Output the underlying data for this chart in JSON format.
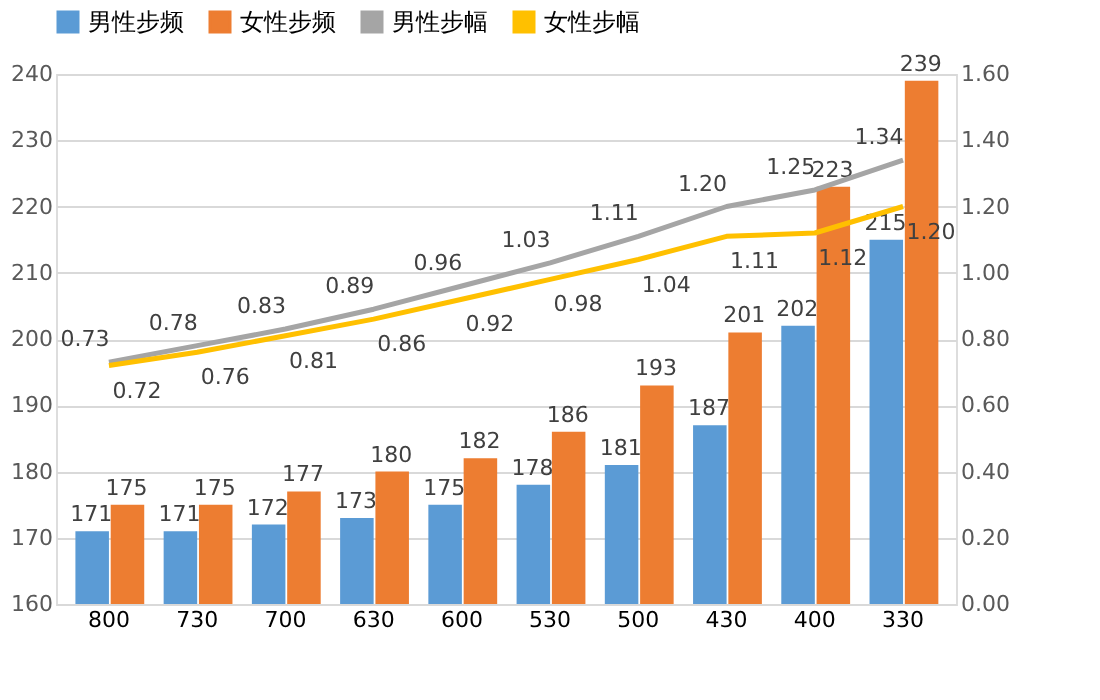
{
  "chart_data": {
    "type": "bar",
    "categories": [
      "800",
      "730",
      "700",
      "630",
      "600",
      "530",
      "500",
      "430",
      "400",
      "330"
    ],
    "series": [
      {
        "name": "男性步频",
        "color": "#5b9bd5",
        "values": [
          171,
          171,
          172,
          173,
          175,
          178,
          181,
          187,
          202,
          215
        ]
      },
      {
        "name": "女性步频",
        "color": "#ed7d31",
        "values": [
          175,
          175,
          177,
          180,
          182,
          186,
          193,
          201,
          223,
          239
        ]
      },
      {
        "name": "男性步幅",
        "type": "line",
        "axis": "y2",
        "color": "#a5a5a5",
        "values": [
          0.73,
          0.78,
          0.83,
          0.89,
          0.96,
          1.03,
          1.11,
          1.2,
          1.25,
          1.34
        ],
        "value_labels": [
          "0.73",
          "0.78",
          "0.83",
          "0.89",
          "0.96",
          "1.03",
          "1.11",
          "1.20",
          "1.25",
          "1.34"
        ]
      },
      {
        "name": "女性步幅",
        "type": "line",
        "axis": "y2",
        "color": "#ffc000",
        "values": [
          0.72,
          0.76,
          0.81,
          0.86,
          0.92,
          0.98,
          1.04,
          1.11,
          1.12,
          1.2
        ],
        "value_labels": [
          "0.72",
          "0.76",
          "0.81",
          "0.86",
          "0.92",
          "0.98",
          "1.04",
          "1.11",
          "1.12",
          "1.20"
        ]
      }
    ],
    "ylim": [
      160,
      240
    ],
    "yticks": [
      160,
      170,
      180,
      190,
      200,
      210,
      220,
      230,
      240
    ],
    "y2lim": [
      0,
      1.6
    ],
    "y2ticks": [
      {
        "value": 0,
        "label": "0.00"
      },
      {
        "value": 0.2,
        "label": "0.20"
      },
      {
        "value": 0.4,
        "label": "0.40"
      },
      {
        "value": 0.6,
        "label": "0.60"
      },
      {
        "value": 0.8,
        "label": "0.80"
      },
      {
        "value": 1.0,
        "label": "1.00"
      },
      {
        "value": 1.2,
        "label": "1.20"
      },
      {
        "value": 1.4,
        "label": "1.40"
      },
      {
        "value": 1.6,
        "label": "1.60"
      }
    ],
    "grid": "y",
    "legend": "top",
    "data_labels": true,
    "marker": "none",
    "line_style": "solid"
  }
}
